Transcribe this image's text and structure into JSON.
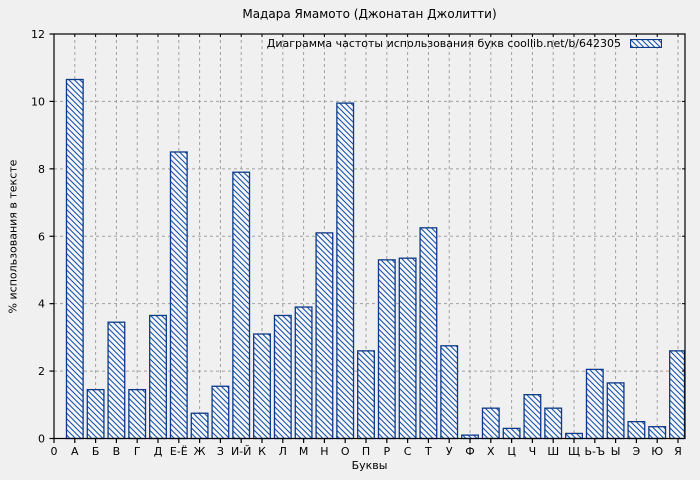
{
  "title": "Мадара Ямамото (Джонатан Джолитти)",
  "legend": {
    "label": "Диаграмма частоты использования букв coollib.net/b/642305"
  },
  "axes": {
    "x_label": "Буквы",
    "y_label": "% использования в тексте",
    "x_origin_tick_label": "0"
  },
  "colors": {
    "background": "#f0f0f0",
    "bar_fill": "#f7f7f7",
    "bar_stroke": "#0d3a87",
    "bar_hatch": "#1553ad",
    "grid": "#a0a0a0",
    "axis": "#000000",
    "text": "#000000"
  },
  "chart_data": {
    "type": "bar",
    "title": "Мадара Ямамото (Джонатан Джолитти)",
    "legend_entry": "Диаграмма частоты использования букв coollib.net/b/642305",
    "legend_position": "top-right-inside",
    "xlabel": "Буквы",
    "ylabel": "% использования в тексте",
    "ylim": [
      0,
      12
    ],
    "yticks": [
      0,
      2,
      4,
      6,
      8,
      10,
      12
    ],
    "grid": true,
    "grid_style": "dashed",
    "bar_hatch": "diagonal-backslash",
    "categories": [
      "А",
      "Б",
      "В",
      "Г",
      "Д",
      "Е-Ё",
      "Ж",
      "З",
      "И-Й",
      "К",
      "Л",
      "М",
      "Н",
      "О",
      "П",
      "Р",
      "С",
      "Т",
      "У",
      "Ф",
      "Х",
      "Ц",
      "Ч",
      "Ш",
      "Щ",
      "Ь-Ъ",
      "Ы",
      "Э",
      "Ю",
      "Я"
    ],
    "values": [
      10.65,
      1.45,
      3.45,
      1.45,
      3.65,
      8.5,
      0.75,
      1.55,
      7.9,
      3.1,
      3.65,
      3.9,
      6.1,
      9.95,
      2.6,
      5.3,
      5.35,
      6.25,
      2.75,
      0.1,
      0.9,
      0.3,
      1.3,
      0.9,
      0.15,
      2.05,
      1.65,
      0.5,
      0.35,
      2.6
    ]
  }
}
